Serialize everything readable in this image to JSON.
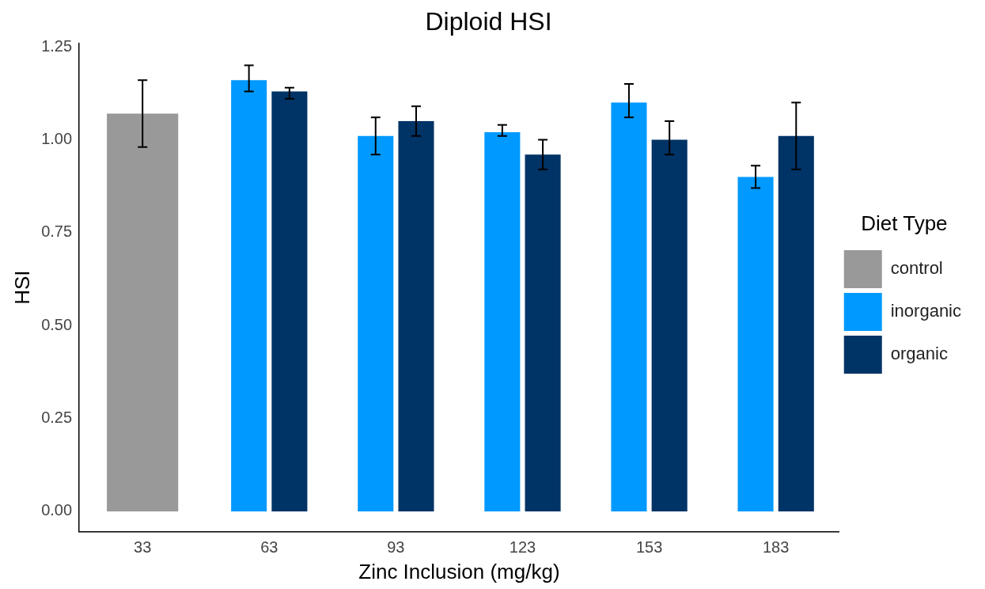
{
  "chart_data": {
    "type": "bar",
    "title": "Diploid HSI",
    "xlabel": "Zinc Inclusion (mg/kg)",
    "ylabel": "HSI",
    "legend_title": "Diet Type",
    "legend": "right",
    "grid": false,
    "categories": [
      "33",
      "63",
      "93",
      "123",
      "153",
      "183"
    ],
    "ylim": [
      -0.055,
      1.26
    ],
    "yticks": [
      {
        "value": 0,
        "label": "0.00"
      },
      {
        "value": 0.25,
        "label": "0.25"
      },
      {
        "value": 0.5,
        "label": "0.50"
      },
      {
        "value": 0.75,
        "label": "0.75"
      },
      {
        "value": 1,
        "label": "1.00"
      },
      {
        "value": 1.25,
        "label": "1.25"
      }
    ],
    "series": [
      {
        "name": "control",
        "color": "#999999",
        "values": [
          1.07,
          null,
          null,
          null,
          null,
          null
        ],
        "errors": [
          [
            0.98,
            1.16
          ],
          null,
          null,
          null,
          null,
          null
        ]
      },
      {
        "name": "inorganic",
        "color": "#0099ff",
        "values": [
          null,
          1.16,
          1.01,
          1.02,
          1.1,
          0.9
        ],
        "errors": [
          null,
          [
            1.13,
            1.2
          ],
          [
            0.96,
            1.06
          ],
          [
            1.01,
            1.04
          ],
          [
            1.06,
            1.15
          ],
          [
            0.87,
            0.93
          ]
        ]
      },
      {
        "name": "organic",
        "color": "#003366",
        "values": [
          null,
          1.13,
          1.05,
          0.96,
          1.0,
          1.01
        ],
        "errors": [
          null,
          [
            1.11,
            1.14
          ],
          [
            1.01,
            1.09
          ],
          [
            0.92,
            1.0
          ],
          [
            0.96,
            1.05
          ],
          [
            0.92,
            1.1
          ]
        ]
      }
    ]
  }
}
